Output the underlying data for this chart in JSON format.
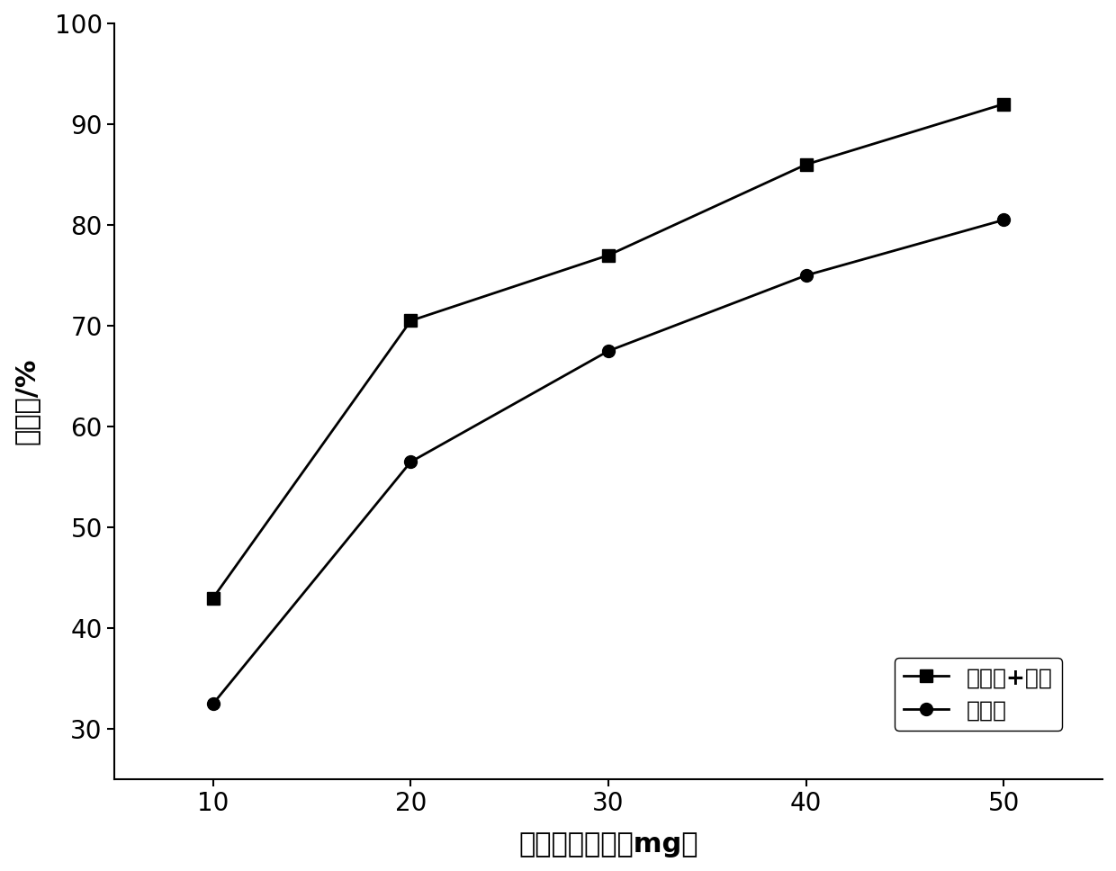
{
  "x": [
    10,
    20,
    30,
    40,
    50
  ],
  "series1_y": [
    43,
    70.5,
    77,
    86,
    92
  ],
  "series2_y": [
    32.5,
    56.5,
    67.5,
    75,
    80.5
  ],
  "series1_label": "錨酸铋+超声",
  "series2_label": "錨酸铋",
  "xlabel": "傅化剂加入量（mg）",
  "ylabel": "降解率/%",
  "xlim": [
    5,
    55
  ],
  "ylim": [
    25,
    100
  ],
  "yticks": [
    30,
    40,
    50,
    60,
    70,
    80,
    90,
    100
  ],
  "xticks": [
    10,
    20,
    30,
    40,
    50
  ],
  "line_color": "#000000",
  "marker_square": "s",
  "marker_circle": "o",
  "marker_size": 10,
  "line_width": 2,
  "background_color": "#ffffff",
  "font_size_label": 22,
  "font_size_tick": 20,
  "font_size_legend": 18
}
